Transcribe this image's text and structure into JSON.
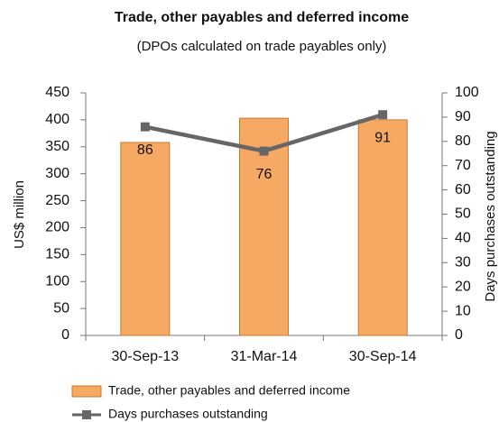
{
  "chart_data": {
    "type": "combo",
    "title": "Trade, other payables and deferred income",
    "subtitle": "(DPOs calculated on trade payables only)",
    "y_label": "US$ million",
    "y2_label": "Days purchases outstanding",
    "categories": [
      "30-Sep-13",
      "31-Mar-14",
      "30-Sep-14"
    ],
    "series": [
      {
        "name": "Trade, other payables and deferred income",
        "type": "bar",
        "color": "#f5a962",
        "values": [
          358,
          403,
          400
        ]
      },
      {
        "name": "Days purchases outstanding",
        "type": "line",
        "axis": "y2",
        "color": "#666666",
        "values": [
          86,
          76,
          91
        ]
      }
    ],
    "ylim": [
      0,
      450
    ],
    "yticks": [
      0,
      50,
      100,
      150,
      200,
      250,
      300,
      350,
      400,
      450
    ],
    "y2lim": [
      0,
      100
    ],
    "y2ticks": [
      0,
      10,
      20,
      30,
      40,
      50,
      60,
      70,
      80,
      90,
      100
    ],
    "legend": "bottom"
  }
}
